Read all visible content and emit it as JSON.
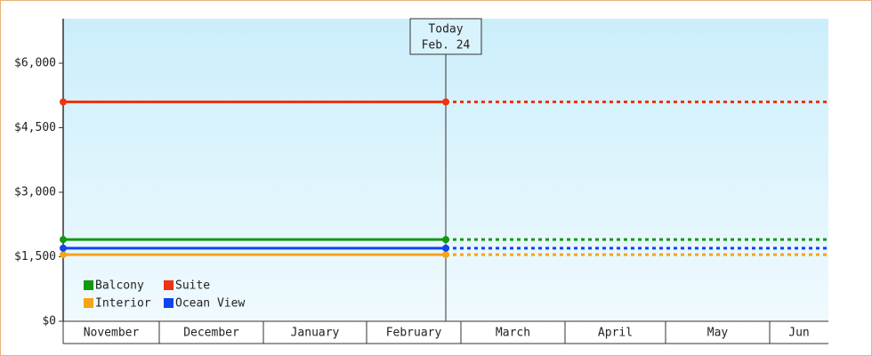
{
  "chart_data": {
    "type": "line",
    "categories": [
      "November",
      "December",
      "January",
      "February",
      "March",
      "April",
      "May",
      "Jun"
    ],
    "annotation": {
      "title": "Today",
      "date": "Feb. 24"
    },
    "series": [
      {
        "name": "Balcony",
        "color": "#119911",
        "value": 1900
      },
      {
        "name": "Suite",
        "color": "#ee3311",
        "value": 5100
      },
      {
        "name": "Interior",
        "color": "#f5a418",
        "value": 1550
      },
      {
        "name": "Ocean View",
        "color": "#1144ee",
        "value": 1700
      }
    ],
    "ylim": [
      0,
      7000
    ],
    "yticks": [
      {
        "value": 0,
        "label": "$0"
      },
      {
        "value": 1500,
        "label": "$1,500"
      },
      {
        "value": 3000,
        "label": "$3,000"
      },
      {
        "value": 4500,
        "label": "$4,500"
      },
      {
        "value": 6000,
        "label": "$6,000"
      }
    ],
    "legend": "lower left"
  }
}
